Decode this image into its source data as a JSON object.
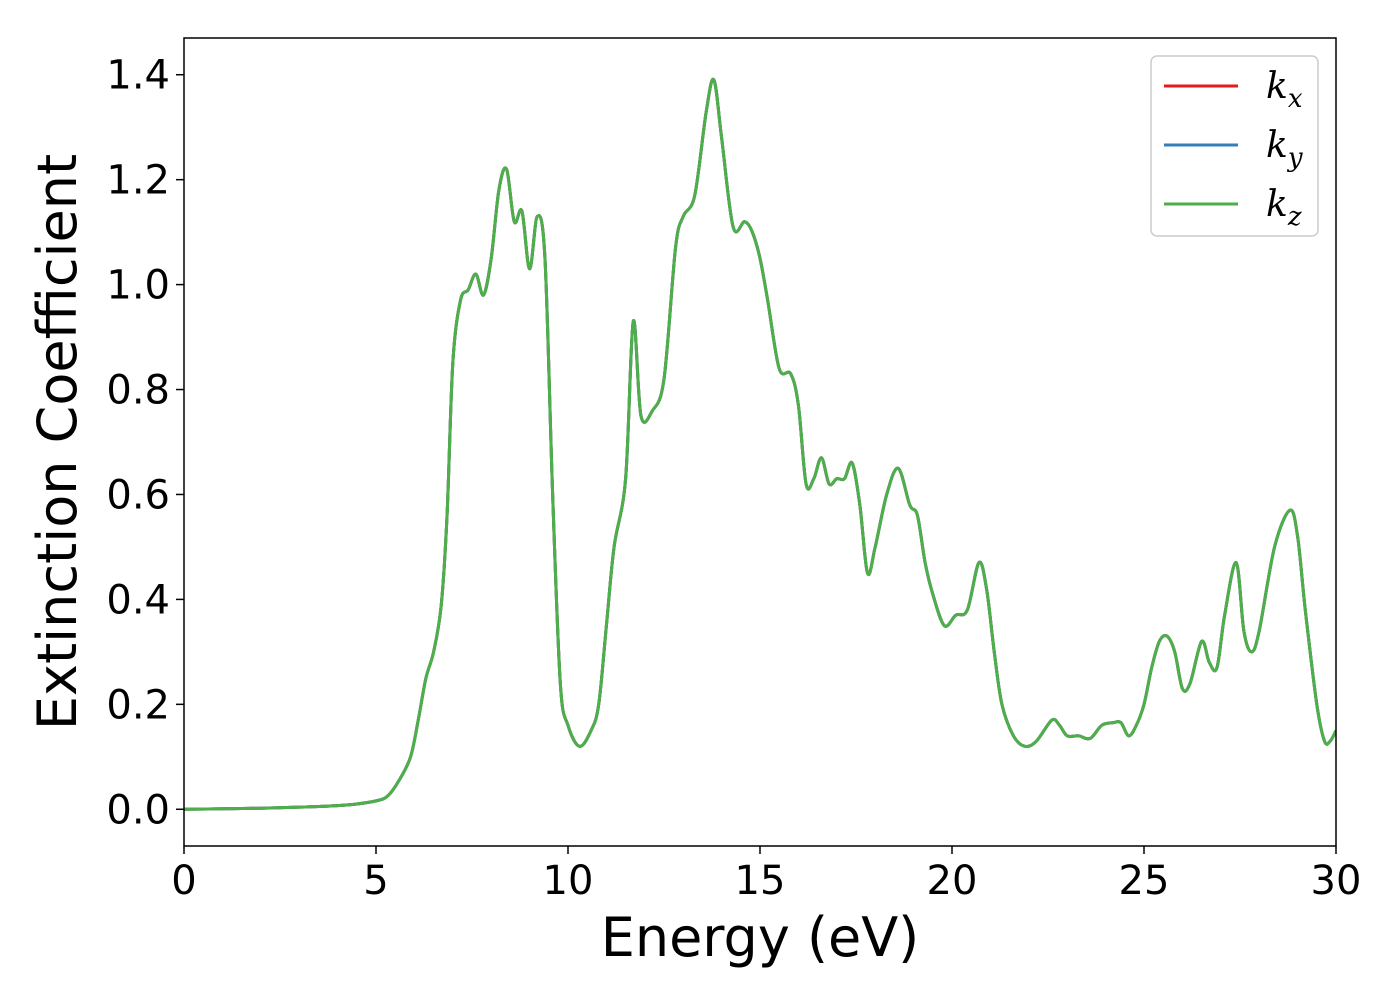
{
  "chart_data": {
    "type": "line",
    "title": "",
    "xlabel": "Energy (eV)",
    "ylabel": "Extinction Coefficient",
    "xlim": [
      0,
      30
    ],
    "ylim": [
      -0.07,
      1.47
    ],
    "xticks": [
      0,
      5,
      10,
      15,
      20,
      25,
      30
    ],
    "xtick_labels": [
      "0",
      "5",
      "10",
      "15",
      "20",
      "25",
      "30"
    ],
    "yticks": [
      0.0,
      0.2,
      0.4,
      0.6,
      0.8,
      1.0,
      1.2,
      1.4
    ],
    "ytick_labels": [
      "0.0",
      "0.2",
      "0.4",
      "0.6",
      "0.8",
      "1.0",
      "1.2",
      "1.4"
    ],
    "grid": false,
    "legend": {
      "placement": "top-right"
    },
    "series": [
      {
        "name": "k_x",
        "label_base": "k",
        "label_sub": "x",
        "color": "#e41a1c",
        "x": [
          0,
          1,
          2,
          3,
          4,
          4.5,
          5,
          5.3,
          5.6,
          5.9,
          6.1,
          6.3,
          6.5,
          6.7,
          6.85,
          7.0,
          7.2,
          7.4,
          7.6,
          7.8,
          8.0,
          8.2,
          8.4,
          8.6,
          8.8,
          9.0,
          9.2,
          9.4,
          9.6,
          9.8,
          10.0,
          10.3,
          10.6,
          10.8,
          11.0,
          11.2,
          11.5,
          11.7,
          11.9,
          12.2,
          12.5,
          12.8,
          13.0,
          13.3,
          13.6,
          13.8,
          14.0,
          14.3,
          14.6,
          14.8,
          15.0,
          15.2,
          15.5,
          15.8,
          16.0,
          16.2,
          16.4,
          16.6,
          16.8,
          17.0,
          17.2,
          17.4,
          17.6,
          17.8,
          18.0,
          18.3,
          18.6,
          18.9,
          19.1,
          19.3,
          19.5,
          19.8,
          20.1,
          20.4,
          20.7,
          20.9,
          21.1,
          21.3,
          21.6,
          21.9,
          22.2,
          22.6,
          22.8,
          23.0,
          23.3,
          23.6,
          23.9,
          24.2,
          24.4,
          24.6,
          24.8,
          25.0,
          25.2,
          25.4,
          25.6,
          25.8,
          26.0,
          26.2,
          26.5,
          26.7,
          26.9,
          27.1,
          27.4,
          27.6,
          27.8,
          28.0,
          28.4,
          28.8,
          29.0,
          29.2,
          29.5,
          29.7,
          29.85,
          30.0
        ],
        "y": [
          0.0,
          0.001,
          0.002,
          0.004,
          0.007,
          0.01,
          0.016,
          0.025,
          0.055,
          0.1,
          0.17,
          0.25,
          0.3,
          0.39,
          0.56,
          0.85,
          0.97,
          0.99,
          1.02,
          0.98,
          1.05,
          1.18,
          1.22,
          1.12,
          1.14,
          1.03,
          1.13,
          1.05,
          0.6,
          0.24,
          0.16,
          0.12,
          0.15,
          0.2,
          0.35,
          0.5,
          0.63,
          0.93,
          0.75,
          0.76,
          0.82,
          1.07,
          1.13,
          1.17,
          1.33,
          1.39,
          1.28,
          1.11,
          1.12,
          1.1,
          1.05,
          0.97,
          0.84,
          0.83,
          0.77,
          0.62,
          0.63,
          0.67,
          0.62,
          0.63,
          0.63,
          0.66,
          0.58,
          0.45,
          0.5,
          0.6,
          0.65,
          0.58,
          0.56,
          0.47,
          0.41,
          0.35,
          0.37,
          0.38,
          0.47,
          0.42,
          0.3,
          0.2,
          0.14,
          0.12,
          0.13,
          0.17,
          0.16,
          0.14,
          0.14,
          0.135,
          0.16,
          0.165,
          0.165,
          0.14,
          0.16,
          0.2,
          0.27,
          0.32,
          0.33,
          0.3,
          0.23,
          0.24,
          0.32,
          0.28,
          0.27,
          0.37,
          0.47,
          0.34,
          0.3,
          0.34,
          0.5,
          0.57,
          0.52,
          0.38,
          0.2,
          0.13,
          0.13,
          0.15
        ]
      },
      {
        "name": "k_y",
        "label_base": "k",
        "label_sub": "y",
        "color": "#377eb8",
        "x": [
          0,
          1,
          2,
          3,
          4,
          4.5,
          5,
          5.3,
          5.6,
          5.9,
          6.1,
          6.3,
          6.5,
          6.7,
          6.85,
          7.0,
          7.2,
          7.4,
          7.6,
          7.8,
          8.0,
          8.2,
          8.4,
          8.6,
          8.8,
          9.0,
          9.2,
          9.4,
          9.6,
          9.8,
          10.0,
          10.3,
          10.6,
          10.8,
          11.0,
          11.2,
          11.5,
          11.7,
          11.9,
          12.2,
          12.5,
          12.8,
          13.0,
          13.3,
          13.6,
          13.8,
          14.0,
          14.3,
          14.6,
          14.8,
          15.0,
          15.2,
          15.5,
          15.8,
          16.0,
          16.2,
          16.4,
          16.6,
          16.8,
          17.0,
          17.2,
          17.4,
          17.6,
          17.8,
          18.0,
          18.3,
          18.6,
          18.9,
          19.1,
          19.3,
          19.5,
          19.8,
          20.1,
          20.4,
          20.7,
          20.9,
          21.1,
          21.3,
          21.6,
          21.9,
          22.2,
          22.6,
          22.8,
          23.0,
          23.3,
          23.6,
          23.9,
          24.2,
          24.4,
          24.6,
          24.8,
          25.0,
          25.2,
          25.4,
          25.6,
          25.8,
          26.0,
          26.2,
          26.5,
          26.7,
          26.9,
          27.1,
          27.4,
          27.6,
          27.8,
          28.0,
          28.4,
          28.8,
          29.0,
          29.2,
          29.5,
          29.7,
          29.85,
          30.0
        ],
        "y": [
          0.0,
          0.001,
          0.002,
          0.004,
          0.007,
          0.01,
          0.016,
          0.025,
          0.055,
          0.1,
          0.17,
          0.25,
          0.3,
          0.39,
          0.56,
          0.85,
          0.97,
          0.99,
          1.02,
          0.98,
          1.05,
          1.18,
          1.22,
          1.12,
          1.14,
          1.03,
          1.13,
          1.05,
          0.6,
          0.24,
          0.16,
          0.12,
          0.15,
          0.2,
          0.35,
          0.5,
          0.63,
          0.93,
          0.75,
          0.76,
          0.82,
          1.07,
          1.13,
          1.17,
          1.33,
          1.39,
          1.28,
          1.11,
          1.12,
          1.1,
          1.05,
          0.97,
          0.84,
          0.83,
          0.77,
          0.62,
          0.63,
          0.67,
          0.62,
          0.63,
          0.63,
          0.66,
          0.58,
          0.45,
          0.5,
          0.6,
          0.65,
          0.58,
          0.56,
          0.47,
          0.41,
          0.35,
          0.37,
          0.38,
          0.47,
          0.42,
          0.3,
          0.2,
          0.14,
          0.12,
          0.13,
          0.17,
          0.16,
          0.14,
          0.14,
          0.135,
          0.16,
          0.165,
          0.165,
          0.14,
          0.16,
          0.2,
          0.27,
          0.32,
          0.33,
          0.3,
          0.23,
          0.24,
          0.32,
          0.28,
          0.27,
          0.37,
          0.47,
          0.34,
          0.3,
          0.34,
          0.5,
          0.57,
          0.52,
          0.38,
          0.2,
          0.13,
          0.13,
          0.15
        ]
      },
      {
        "name": "k_z",
        "label_base": "k",
        "label_sub": "z",
        "color": "#4daf4a",
        "x": [
          0,
          1,
          2,
          3,
          4,
          4.5,
          5,
          5.3,
          5.6,
          5.9,
          6.1,
          6.3,
          6.5,
          6.7,
          6.85,
          7.0,
          7.2,
          7.4,
          7.6,
          7.8,
          8.0,
          8.2,
          8.4,
          8.6,
          8.8,
          9.0,
          9.2,
          9.4,
          9.6,
          9.8,
          10.0,
          10.3,
          10.6,
          10.8,
          11.0,
          11.2,
          11.5,
          11.7,
          11.9,
          12.2,
          12.5,
          12.8,
          13.0,
          13.3,
          13.6,
          13.8,
          14.0,
          14.3,
          14.6,
          14.8,
          15.0,
          15.2,
          15.5,
          15.8,
          16.0,
          16.2,
          16.4,
          16.6,
          16.8,
          17.0,
          17.2,
          17.4,
          17.6,
          17.8,
          18.0,
          18.3,
          18.6,
          18.9,
          19.1,
          19.3,
          19.5,
          19.8,
          20.1,
          20.4,
          20.7,
          20.9,
          21.1,
          21.3,
          21.6,
          21.9,
          22.2,
          22.6,
          22.8,
          23.0,
          23.3,
          23.6,
          23.9,
          24.2,
          24.4,
          24.6,
          24.8,
          25.0,
          25.2,
          25.4,
          25.6,
          25.8,
          26.0,
          26.2,
          26.5,
          26.7,
          26.9,
          27.1,
          27.4,
          27.6,
          27.8,
          28.0,
          28.4,
          28.8,
          29.0,
          29.2,
          29.5,
          29.7,
          29.85,
          30.0
        ],
        "y": [
          0.0,
          0.001,
          0.002,
          0.004,
          0.007,
          0.01,
          0.016,
          0.025,
          0.055,
          0.1,
          0.17,
          0.25,
          0.3,
          0.39,
          0.56,
          0.85,
          0.97,
          0.99,
          1.02,
          0.98,
          1.05,
          1.18,
          1.22,
          1.12,
          1.14,
          1.03,
          1.13,
          1.05,
          0.6,
          0.24,
          0.16,
          0.12,
          0.15,
          0.2,
          0.35,
          0.5,
          0.63,
          0.93,
          0.75,
          0.76,
          0.82,
          1.07,
          1.13,
          1.17,
          1.33,
          1.39,
          1.28,
          1.11,
          1.12,
          1.1,
          1.05,
          0.97,
          0.84,
          0.83,
          0.77,
          0.62,
          0.63,
          0.67,
          0.62,
          0.63,
          0.63,
          0.66,
          0.58,
          0.45,
          0.5,
          0.6,
          0.65,
          0.58,
          0.56,
          0.47,
          0.41,
          0.35,
          0.37,
          0.38,
          0.47,
          0.42,
          0.3,
          0.2,
          0.14,
          0.12,
          0.13,
          0.17,
          0.16,
          0.14,
          0.14,
          0.135,
          0.16,
          0.165,
          0.165,
          0.14,
          0.16,
          0.2,
          0.27,
          0.32,
          0.33,
          0.3,
          0.23,
          0.24,
          0.32,
          0.28,
          0.27,
          0.37,
          0.47,
          0.34,
          0.3,
          0.34,
          0.5,
          0.57,
          0.52,
          0.38,
          0.2,
          0.13,
          0.13,
          0.15
        ]
      }
    ]
  }
}
